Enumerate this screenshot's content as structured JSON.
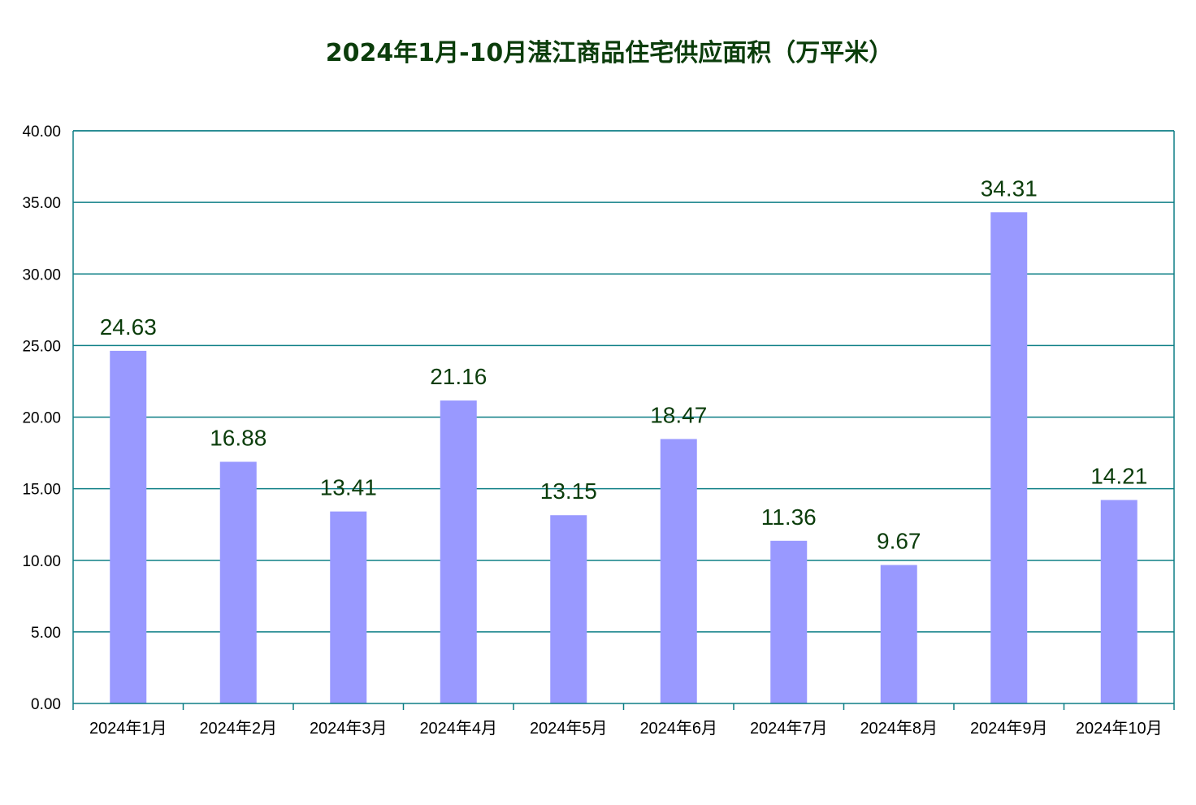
{
  "colors": {
    "bar": "#9999ff",
    "axis": "#0e7f86",
    "grid": "#0e7f86",
    "title": "#0b3d0b",
    "data_label": "#0b3d0b"
  },
  "chart_data": {
    "type": "bar",
    "title": "2024年1月-10月湛江商品住宅供应面积（万平米）",
    "xlabel": "",
    "ylabel": "",
    "categories": [
      "2024年1月",
      "2024年2月",
      "2024年3月",
      "2024年4月",
      "2024年5月",
      "2024年6月",
      "2024年7月",
      "2024年8月",
      "2024年9月",
      "2024年10月"
    ],
    "values": [
      24.63,
      16.88,
      13.41,
      21.16,
      13.15,
      18.47,
      11.36,
      9.67,
      34.31,
      14.21
    ],
    "value_labels": [
      "24.63",
      "16.88",
      "13.41",
      "21.16",
      "13.15",
      "18.47",
      "11.36",
      "9.67",
      "34.31",
      "14.21"
    ],
    "ylim": [
      0,
      40
    ],
    "yticks": [
      "0.00",
      "5.00",
      "10.00",
      "15.00",
      "20.00",
      "25.00",
      "30.00",
      "35.00",
      "40.00"
    ],
    "grid": true,
    "legend": "none"
  }
}
